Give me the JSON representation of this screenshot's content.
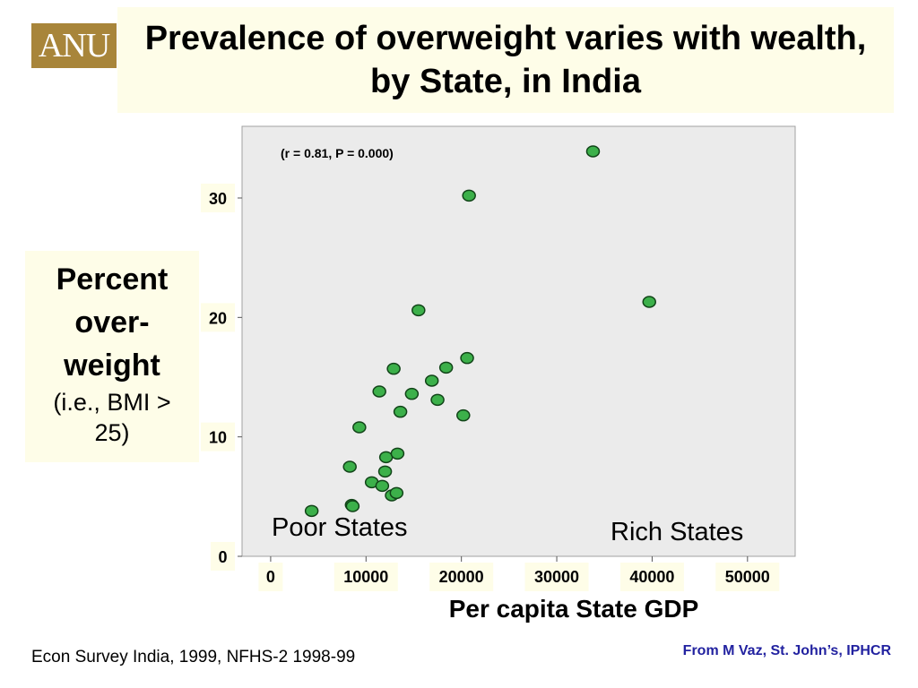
{
  "logo_text": "ANU",
  "title": "Prevalence of overweight varies with wealth, by State, in India",
  "ylabel_main": "Percent over-weight",
  "ylabel_sub": "(i.e., BMI > 25)",
  "xlabel": "Per capita State GDP",
  "stat_annotation": "(r = 0.81, P = 0.000)",
  "label_poor": "Poor States",
  "label_rich": "Rich States",
  "source_left": "Econ Survey India, 1999, NFHS-2 1998-99",
  "source_right": "From M Vaz, St. John’s, IPHCR",
  "colors": {
    "point_fill": "#3cb04a",
    "point_stroke": "#114418",
    "plot_bg": "#ebebeb",
    "accent": "#a8853a",
    "label_bg": "#fefde8"
  },
  "chart_data": {
    "type": "scatter",
    "title": "Prevalence of overweight varies with wealth, by State, in India",
    "xlabel": "Per capita State GDP",
    "ylabel": "Percent over-weight (i.e., BMI > 25)",
    "xlim": [
      -3000,
      55000
    ],
    "ylim": [
      0,
      36
    ],
    "x_ticks": [
      0,
      10000,
      20000,
      30000,
      40000,
      50000
    ],
    "y_ticks": [
      0,
      10,
      20,
      30
    ],
    "grid": false,
    "annotations": [
      "(r = 0.81, P = 0.000)",
      "Poor States",
      "Rich States"
    ],
    "points": [
      {
        "x": 4300,
        "y": 3.8
      },
      {
        "x": 8300,
        "y": 7.5
      },
      {
        "x": 8500,
        "y": 4.3
      },
      {
        "x": 8600,
        "y": 4.2
      },
      {
        "x": 9300,
        "y": 10.8
      },
      {
        "x": 10600,
        "y": 6.2
      },
      {
        "x": 11400,
        "y": 13.8
      },
      {
        "x": 11700,
        "y": 5.9
      },
      {
        "x": 12000,
        "y": 7.1
      },
      {
        "x": 12100,
        "y": 8.3
      },
      {
        "x": 12700,
        "y": 5.1
      },
      {
        "x": 12900,
        "y": 15.7
      },
      {
        "x": 13200,
        "y": 5.3
      },
      {
        "x": 13300,
        "y": 8.6
      },
      {
        "x": 13600,
        "y": 12.1
      },
      {
        "x": 14800,
        "y": 13.6
      },
      {
        "x": 15500,
        "y": 20.6
      },
      {
        "x": 16900,
        "y": 14.7
      },
      {
        "x": 17500,
        "y": 13.1
      },
      {
        "x": 18400,
        "y": 15.8
      },
      {
        "x": 20200,
        "y": 11.8
      },
      {
        "x": 20600,
        "y": 16.6
      },
      {
        "x": 20800,
        "y": 30.2
      },
      {
        "x": 33800,
        "y": 33.9
      },
      {
        "x": 39700,
        "y": 21.3
      }
    ]
  }
}
